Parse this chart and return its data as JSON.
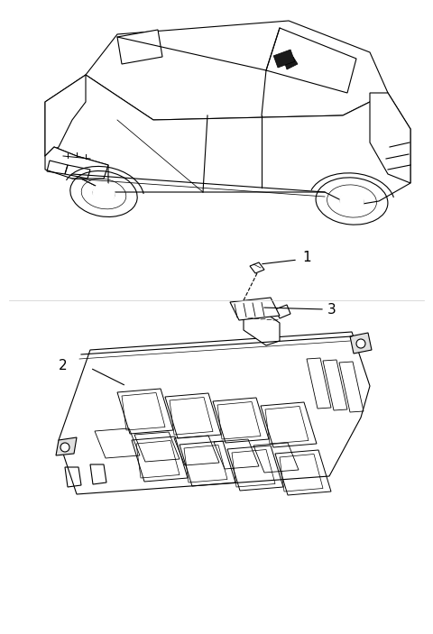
{
  "title": "",
  "background_color": "#ffffff",
  "fig_width": 4.8,
  "fig_height": 7.03,
  "dpi": 100,
  "label_1_text": "1",
  "label_2_text": "2",
  "label_3_text": "3",
  "label_fontsize": 11,
  "line_color": "#000000",
  "fill_color": "#000000",
  "car_highlight_color": "#1a1a1a"
}
